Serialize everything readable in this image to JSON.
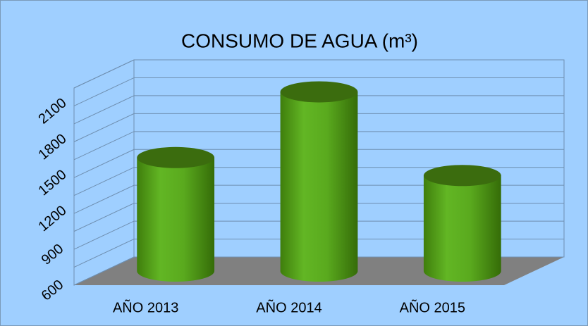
{
  "chart_data": {
    "type": "bar3d",
    "title": "CONSUMO DE AGUA (m³)",
    "categories": [
      "AÑO 2013",
      "AÑO 2014",
      "AÑO 2015"
    ],
    "values": [
      1550,
      2100,
      1400
    ],
    "color": "#5aaa1e",
    "ylim": [
      600,
      2250
    ],
    "yticks": [
      600,
      900,
      1200,
      1500,
      1800,
      2100
    ],
    "minor_yticks": [
      750,
      1050,
      1350,
      1650,
      1950,
      2250
    ],
    "grid": true
  }
}
